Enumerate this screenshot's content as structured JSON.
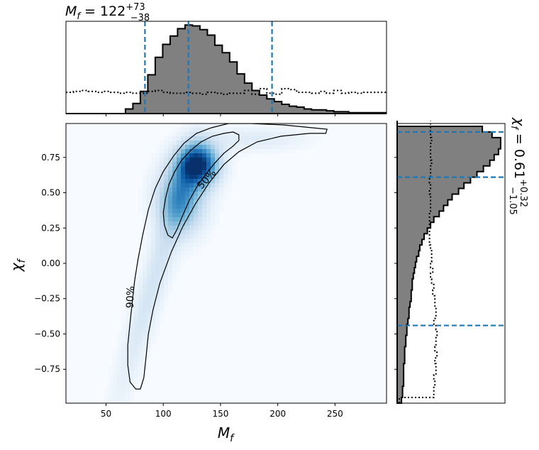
{
  "chart_data": {
    "type": "corner-plot",
    "x_param": {
      "label_symbol": "M",
      "label_sub": "f",
      "median": "122",
      "upper": "+73",
      "lower": "−38",
      "quantiles": [
        84,
        122,
        195
      ],
      "range": [
        15,
        295
      ],
      "ticks": [
        50,
        100,
        150,
        200,
        250
      ],
      "tick_labels": [
        "50",
        "100",
        "150",
        "200",
        "250"
      ]
    },
    "y_param": {
      "label_symbol": "χ",
      "label_sub": "f",
      "median": "0.61",
      "upper": "+0.32",
      "lower": "−1.05",
      "quantiles": [
        -0.44,
        0.61,
        0.93
      ],
      "range": [
        -0.99,
        0.99
      ],
      "ticks": [
        -0.75,
        -0.5,
        -0.25,
        0.0,
        0.25,
        0.5,
        0.75
      ],
      "tick_labels": [
        "−0.75",
        "−0.50",
        "−0.25",
        "0.00",
        "0.25",
        "0.50",
        "0.75"
      ]
    },
    "x_hist": {
      "bin_width": 6.5,
      "bin_starts": [
        15,
        21.5,
        28,
        34.5,
        41,
        47.5,
        54,
        60.5,
        67,
        73.5,
        80,
        86.5,
        93,
        99.5,
        106,
        112.5,
        119,
        125.5,
        132,
        138.5,
        145,
        151.5,
        158,
        164.5,
        171,
        177.5,
        184,
        190.5,
        197,
        203.5,
        210,
        216.5,
        223,
        229.5,
        236,
        242.5,
        249,
        255.5,
        262,
        268.5,
        275,
        281.5,
        288
      ],
      "posterior": [
        0,
        0,
        0,
        0,
        0,
        0,
        0,
        0,
        0.05,
        0.11,
        0.24,
        0.42,
        0.61,
        0.75,
        0.84,
        0.92,
        0.96,
        0.95,
        0.91,
        0.85,
        0.74,
        0.66,
        0.56,
        0.43,
        0.33,
        0.25,
        0.2,
        0.16,
        0.13,
        0.1,
        0.08,
        0.07,
        0.05,
        0.04,
        0.04,
        0.03,
        0.02,
        0.02,
        0.01,
        0.01,
        0.01,
        0.01,
        0.01
      ],
      "prior": [
        0.23,
        0.24,
        0.25,
        0.24,
        0.23,
        0.24,
        0.23,
        0.22,
        0.23,
        0.22,
        0.22,
        0.24,
        0.25,
        0.23,
        0.22,
        0.22,
        0.23,
        0.22,
        0.21,
        0.23,
        0.22,
        0.21,
        0.22,
        0.22,
        0.25,
        0.21,
        0.27,
        0.22,
        0.21,
        0.27,
        0.26,
        0.23,
        0.23,
        0.22,
        0.24,
        0.22,
        0.25,
        0.22,
        0.23,
        0.22,
        0.23,
        0.23,
        0.23
      ]
    },
    "y_hist": {
      "bin_width": 0.04,
      "bin_starts": [
        -0.99,
        -0.95,
        -0.91,
        -0.87,
        -0.83,
        -0.79,
        -0.75,
        -0.71,
        -0.67,
        -0.63,
        -0.59,
        -0.55,
        -0.51,
        -0.47,
        -0.43,
        -0.39,
        -0.35,
        -0.31,
        -0.27,
        -0.23,
        -0.19,
        -0.15,
        -0.11,
        -0.07,
        -0.03,
        0.01,
        0.05,
        0.09,
        0.13,
        0.17,
        0.21,
        0.25,
        0.29,
        0.33,
        0.37,
        0.41,
        0.45,
        0.49,
        0.53,
        0.57,
        0.61,
        0.65,
        0.69,
        0.73,
        0.77,
        0.81,
        0.85,
        0.89,
        0.93,
        0.97
      ],
      "posterior": [
        0.04,
        0.05,
        0.05,
        0.06,
        0.06,
        0.06,
        0.06,
        0.07,
        0.07,
        0.07,
        0.08,
        0.08,
        0.09,
        0.09,
        0.1,
        0.11,
        0.11,
        0.12,
        0.13,
        0.13,
        0.14,
        0.14,
        0.15,
        0.16,
        0.17,
        0.18,
        0.2,
        0.21,
        0.23,
        0.25,
        0.28,
        0.31,
        0.34,
        0.39,
        0.43,
        0.47,
        0.51,
        0.57,
        0.62,
        0.68,
        0.74,
        0.8,
        0.86,
        0.9,
        0.94,
        0.96,
        0.96,
        0.88,
        0.79,
        0
      ],
      "prior": [
        0.02,
        0.34,
        0.34,
        0.35,
        0.34,
        0.36,
        0.36,
        0.35,
        0.37,
        0.35,
        0.36,
        0.36,
        0.37,
        0.36,
        0.34,
        0.36,
        0.36,
        0.35,
        0.35,
        0.33,
        0.34,
        0.32,
        0.31,
        0.33,
        0.31,
        0.32,
        0.32,
        0.31,
        0.3,
        0.3,
        0.3,
        0.3,
        0.3,
        0.3,
        0.31,
        0.31,
        0.31,
        0.3,
        0.31,
        0.3,
        0.31,
        0.31,
        0.32,
        0.31,
        0.31,
        0.31,
        0.32,
        0.31,
        0.31,
        0.31
      ]
    },
    "contours": [
      {
        "label": "50%",
        "points": [
          [
            108.0,
            0.18
          ],
          [
            104.0,
            0.2
          ],
          [
            101.0,
            0.27
          ],
          [
            100.0,
            0.36
          ],
          [
            102.0,
            0.46
          ],
          [
            105.0,
            0.56
          ],
          [
            110.0,
            0.65
          ],
          [
            116.0,
            0.73
          ],
          [
            124.0,
            0.8
          ],
          [
            133.0,
            0.86
          ],
          [
            143.0,
            0.9
          ],
          [
            153.0,
            0.92
          ],
          [
            161.0,
            0.93
          ],
          [
            166.0,
            0.91
          ],
          [
            166.0,
            0.87
          ],
          [
            161.0,
            0.83
          ],
          [
            153.0,
            0.78
          ],
          [
            145.0,
            0.71
          ],
          [
            137.0,
            0.63
          ],
          [
            130.0,
            0.55
          ],
          [
            123.0,
            0.45
          ],
          [
            117.0,
            0.34
          ],
          [
            112.0,
            0.24
          ],
          [
            108.0,
            0.18
          ]
        ]
      },
      {
        "label": "90%",
        "points": [
          [
            76.0,
            -0.89
          ],
          [
            71.0,
            -0.84
          ],
          [
            69.0,
            -0.72
          ],
          [
            69.0,
            -0.58
          ],
          [
            71.0,
            -0.42
          ],
          [
            73.0,
            -0.27
          ],
          [
            75.0,
            -0.12
          ],
          [
            78.0,
            0.03
          ],
          [
            82.0,
            0.2
          ],
          [
            87.0,
            0.38
          ],
          [
            93.0,
            0.53
          ],
          [
            100.0,
            0.65
          ],
          [
            109.0,
            0.76
          ],
          [
            118.0,
            0.85
          ],
          [
            129.0,
            0.92
          ],
          [
            142.0,
            0.96
          ],
          [
            157.0,
            0.99
          ],
          [
            177.0,
            0.99
          ],
          [
            205.0,
            0.98
          ],
          [
            230.0,
            0.96
          ],
          [
            243.0,
            0.95
          ],
          [
            242.0,
            0.92
          ],
          [
            228.0,
            0.92
          ],
          [
            203.0,
            0.9
          ],
          [
            182.0,
            0.86
          ],
          [
            166.0,
            0.79
          ],
          [
            153.0,
            0.7
          ],
          [
            140.0,
            0.57
          ],
          [
            128.0,
            0.42
          ],
          [
            117.0,
            0.26
          ],
          [
            107.0,
            0.08
          ],
          [
            97.0,
            -0.14
          ],
          [
            91.0,
            -0.33
          ],
          [
            87.0,
            -0.5
          ],
          [
            85.0,
            -0.66
          ],
          [
            83.0,
            -0.81
          ],
          [
            80.0,
            -0.89
          ],
          [
            76.0,
            -0.89
          ]
        ]
      }
    ]
  }
}
